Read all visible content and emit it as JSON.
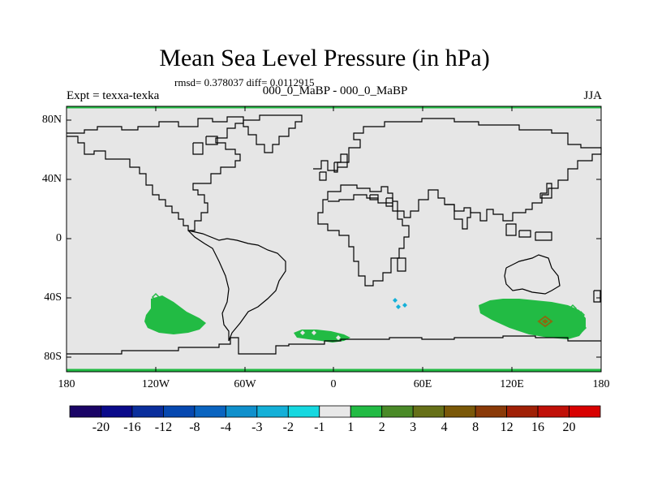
{
  "title": "Mean Sea Level Pressure (in hPa)",
  "stats": "rmsd= 0.378037 diff= 0.0112915",
  "left_label": "Expt = texxa-texka",
  "center_label": "000_0_MaBP - 000_0_MaBP",
  "right_label": "JJA",
  "lat_labels": [
    "80N",
    "40N",
    "0",
    "40S",
    "80S"
  ],
  "lon_labels": [
    "180",
    "120W",
    "60W",
    "0",
    "60E",
    "120E",
    "180"
  ],
  "colorbar": {
    "labels": [
      "-20",
      "-16",
      "-12",
      "-8",
      "-4",
      "-3",
      "-2",
      "-1",
      "1",
      "2",
      "3",
      "4",
      "8",
      "12",
      "16",
      "20"
    ],
    "colors": [
      "#1a0466",
      "#0a0a8a",
      "#0a2e9c",
      "#0648b0",
      "#0a64c0",
      "#1090cc",
      "#14b0d8",
      "#16d8e0",
      "#e8e8e8",
      "#22bb44",
      "#4a8a28",
      "#667018",
      "#7a5808",
      "#8a3a08",
      "#a02006",
      "#c01008",
      "#d80000"
    ]
  },
  "colors": {
    "background": "#e6e6e6",
    "land_outline": "#000000",
    "positive_fill": "#22bb44",
    "strong_positive": "#8a6a10",
    "negative": "#14b0d8"
  }
}
